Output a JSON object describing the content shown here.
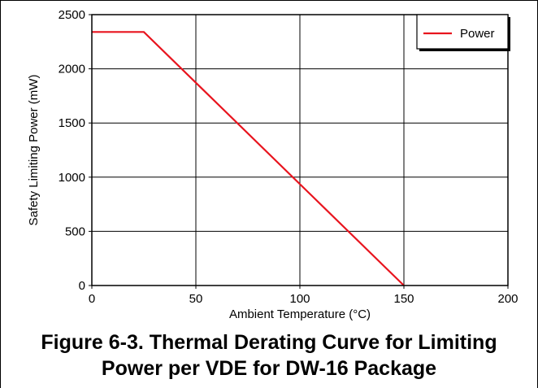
{
  "figure": {
    "caption_line1": "Figure 6-3. Thermal Derating Curve for Limiting",
    "caption_line2": "Power per VDE for DW-16 Package"
  },
  "chart_data": {
    "type": "line",
    "title": "",
    "xlabel": "Ambient Temperature (°C)",
    "ylabel": "Safety Limiting Power (mW)",
    "xlim": [
      0,
      200
    ],
    "ylim": [
      0,
      2500
    ],
    "xticks": [
      0,
      50,
      100,
      150,
      200
    ],
    "yticks": [
      0,
      500,
      1000,
      1500,
      2000,
      2500
    ],
    "grid": true,
    "legend_position": "top-right",
    "series": [
      {
        "name": "Power",
        "color": "#e8141e",
        "x": [
          0,
          25,
          150
        ],
        "y": [
          2340,
          2340,
          0
        ]
      }
    ]
  }
}
